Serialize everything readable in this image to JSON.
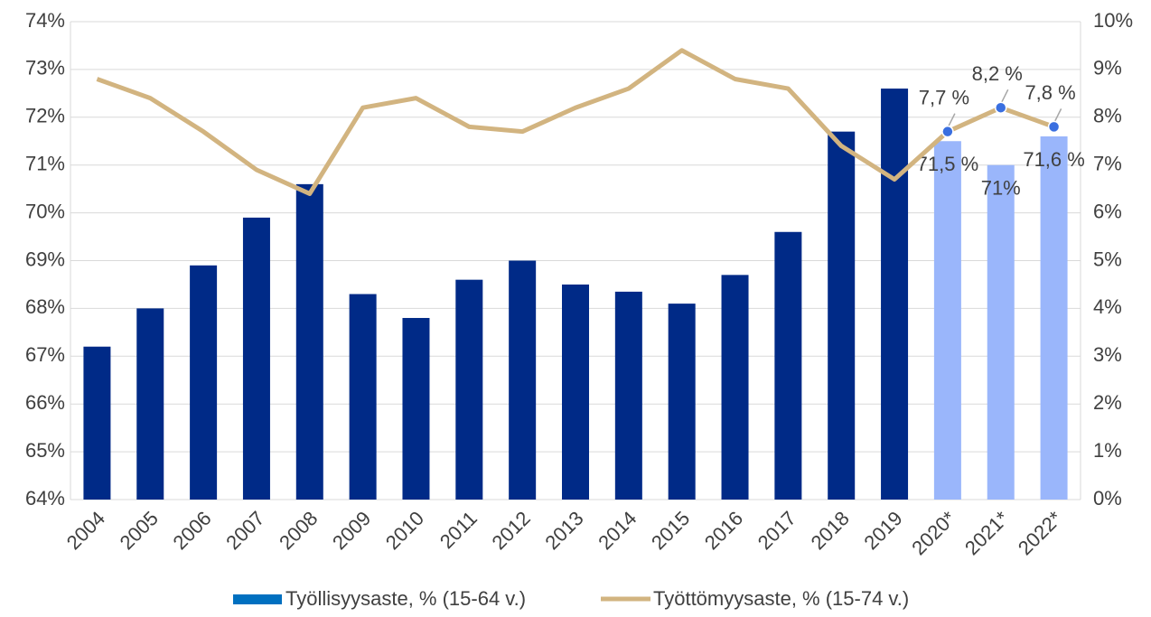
{
  "chart_data": {
    "type": "bar-line",
    "categories": [
      "2004",
      "2005",
      "2006",
      "2007",
      "2008",
      "2009",
      "2010",
      "2011",
      "2012",
      "2013",
      "2014",
      "2015",
      "2016",
      "2017",
      "2018",
      "2019",
      "2020*",
      "2021*",
      "2022*"
    ],
    "series": [
      {
        "name": "Työllisyysaste, % (15-64 v.)",
        "type": "bar",
        "color": "#0070c0",
        "colors": [
          "#002a87",
          "#002a87",
          "#002a87",
          "#002a87",
          "#002a87",
          "#002a87",
          "#002a87",
          "#002a87",
          "#002a87",
          "#002a87",
          "#002a87",
          "#002a87",
          "#002a87",
          "#002a87",
          "#002a87",
          "#002a87",
          "#9ab6fb",
          "#9ab6fb",
          "#9ab6fb"
        ],
        "values": [
          67.2,
          68.0,
          68.9,
          69.9,
          70.6,
          68.3,
          67.8,
          68.6,
          69.0,
          68.5,
          68.35,
          68.1,
          68.7,
          69.6,
          71.7,
          72.6,
          71.5,
          71.0,
          71.6
        ],
        "value_labels": [
          null,
          null,
          null,
          null,
          null,
          null,
          null,
          null,
          null,
          null,
          null,
          null,
          null,
          null,
          null,
          null,
          "71,5 %",
          "71%",
          "71,6 %"
        ]
      },
      {
        "name": "Työttömyysaste, % (15-74 v.)",
        "type": "line",
        "axis": "y2",
        "color": "#d2b480",
        "marker_color": "#3a6fe0",
        "values": [
          8.8,
          8.4,
          7.7,
          6.9,
          6.4,
          8.2,
          8.4,
          7.8,
          7.7,
          8.2,
          8.6,
          9.4,
          8.8,
          8.6,
          7.4,
          6.7,
          7.7,
          8.2,
          7.8
        ],
        "value_labels": [
          null,
          null,
          null,
          null,
          null,
          null,
          null,
          null,
          null,
          null,
          null,
          null,
          null,
          null,
          null,
          null,
          "7,7 %",
          "8,2 %",
          "7,8 %"
        ]
      }
    ],
    "ylim": [
      64,
      74
    ],
    "yticks": [
      {
        "value": 64,
        "label": "64%"
      },
      {
        "value": 65,
        "label": "65%"
      },
      {
        "value": 66,
        "label": "66%"
      },
      {
        "value": 67,
        "label": "67%"
      },
      {
        "value": 68,
        "label": "68%"
      },
      {
        "value": 69,
        "label": "69%"
      },
      {
        "value": 70,
        "label": "70%"
      },
      {
        "value": 71,
        "label": "71%"
      },
      {
        "value": 72,
        "label": "72%"
      },
      {
        "value": 73,
        "label": "73%"
      },
      {
        "value": 74,
        "label": "74%"
      }
    ],
    "y2lim": [
      0,
      10
    ],
    "y2ticks": [
      {
        "value": 0,
        "label": "0%"
      },
      {
        "value": 1,
        "label": "1%"
      },
      {
        "value": 2,
        "label": "2%"
      },
      {
        "value": 3,
        "label": "3%"
      },
      {
        "value": 4,
        "label": "4%"
      },
      {
        "value": 5,
        "label": "5%"
      },
      {
        "value": 6,
        "label": "6%"
      },
      {
        "value": 7,
        "label": "7%"
      },
      {
        "value": 8,
        "label": "8%"
      },
      {
        "value": 9,
        "label": "9%"
      },
      {
        "value": 10,
        "label": "10%"
      }
    ],
    "grid": true,
    "legend": "bottom"
  }
}
